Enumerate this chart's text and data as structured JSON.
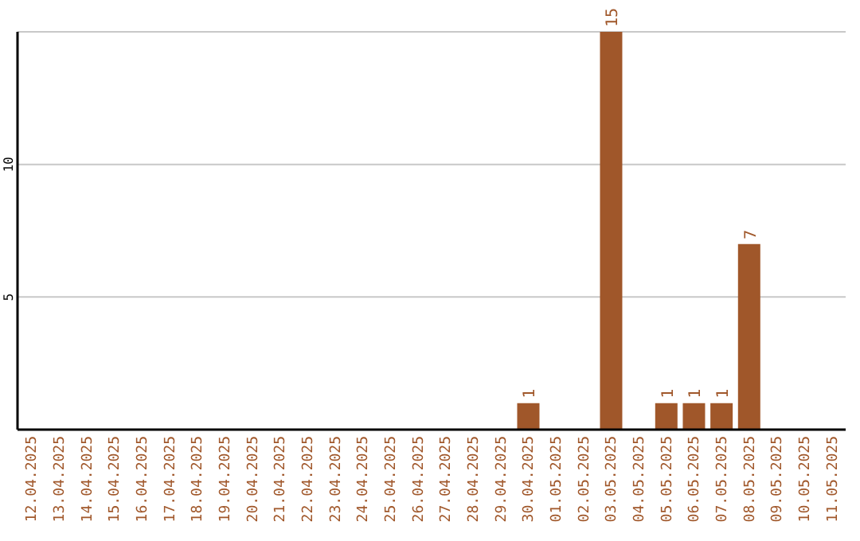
{
  "chart_data": {
    "type": "bar",
    "categories": [
      "12.04.2025",
      "13.04.2025",
      "14.04.2025",
      "15.04.2025",
      "16.04.2025",
      "17.04.2025",
      "18.04.2025",
      "19.04.2025",
      "20.04.2025",
      "21.04.2025",
      "22.04.2025",
      "23.04.2025",
      "24.04.2025",
      "25.04.2025",
      "26.04.2025",
      "27.04.2025",
      "28.04.2025",
      "29.04.2025",
      "30.04.2025",
      "01.05.2025",
      "02.05.2025",
      "03.05.2025",
      "04.05.2025",
      "05.05.2025",
      "06.05.2025",
      "07.05.2025",
      "08.05.2025",
      "09.05.2025",
      "10.05.2025",
      "11.05.2025"
    ],
    "values": [
      0,
      0,
      0,
      0,
      0,
      0,
      0,
      0,
      0,
      0,
      0,
      0,
      0,
      0,
      0,
      0,
      0,
      0,
      1,
      0,
      0,
      15,
      0,
      1,
      1,
      1,
      7,
      0,
      0,
      0
    ],
    "value_labels": [
      null,
      null,
      null,
      null,
      null,
      null,
      null,
      null,
      null,
      null,
      null,
      null,
      null,
      null,
      null,
      null,
      null,
      null,
      "1",
      null,
      null,
      "15",
      null,
      "1",
      "1",
      "1",
      "7",
      null,
      null,
      null
    ],
    "color": "#a0572a",
    "ylim": [
      0,
      15
    ],
    "yticks": [
      5,
      10
    ],
    "grid": "y"
  }
}
